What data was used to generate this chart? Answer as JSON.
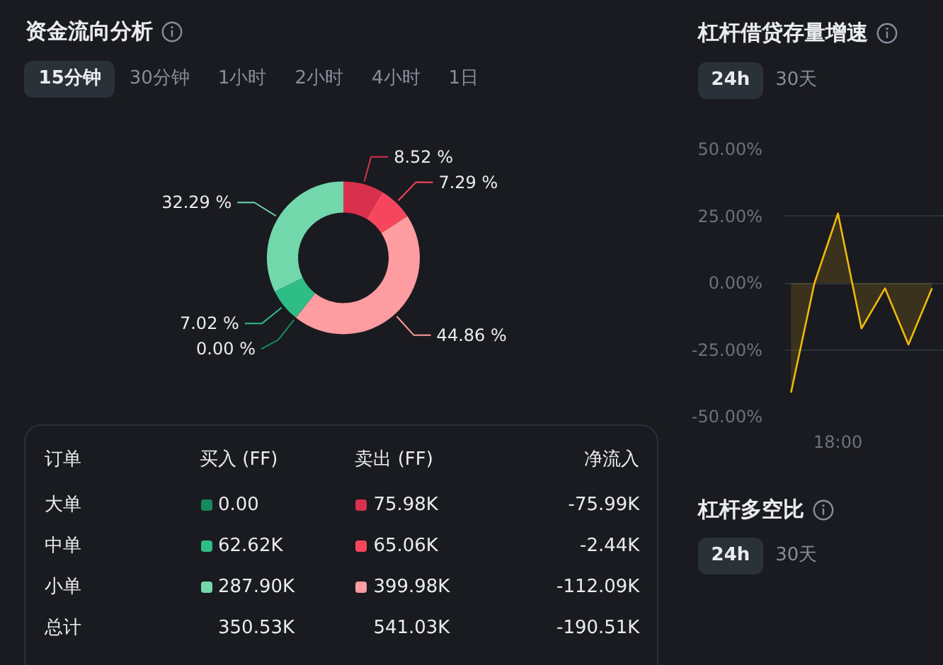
{
  "chart_data": [
    {
      "type": "donut",
      "title": "资金流向分析",
      "annotations": [
        "15分钟",
        "30分钟",
        "1小时",
        "2小时",
        "4小时",
        "1日"
      ],
      "categories": [
        null,
        null,
        null,
        null,
        null,
        null
      ],
      "values": [
        8.52,
        7.29,
        44.86,
        0,
        7.02,
        32.29
      ],
      "colors": [
        "#d9304e",
        "#f6465d",
        "#fd9ca1",
        "#168a5c",
        "#2ebd85",
        "#72d8ac"
      ],
      "value_labels": [
        "8.52 %",
        "7.29 %",
        "44.86 %",
        "0.00 %",
        "7.02 %",
        "32.29 %"
      ]
    },
    {
      "type": "other",
      "annotations": [
        "订单",
        "买入 (FF)",
        "卖出 (FF)",
        "净流入",
        "大单",
        "0.00",
        "75.98K",
        "-75.99K",
        "中单",
        "62.62K",
        "65.06K",
        "-2.44K",
        "小单",
        "287.90K",
        "399.98K",
        "-112.09K",
        "总计",
        "350.53K",
        "541.03K",
        "-190.51K"
      ],
      "colors": [
        null,
        null,
        null,
        null,
        null,
        "#168a5c",
        "#d9304e",
        null,
        null,
        "#2ebd85",
        "#f6465d",
        null,
        null,
        "#72d8ac",
        "#fd9ca1",
        null,
        null,
        null,
        null,
        null
      ]
    },
    {
      "type": "line",
      "title": "杠杆借贷存量增速",
      "annotations": [
        "24h",
        "30天"
      ],
      "categories": [
        null,
        null,
        "18:00",
        null,
        null,
        null,
        null
      ],
      "series": [
        {
          "type": "area",
          "color": "#f0b90b",
          "values": [
            -41,
            0,
            26,
            -17,
            -2,
            -23,
            -2
          ]
        }
      ],
      "ylim": [
        -50,
        50
      ],
      "yticks": [
        {
          "value": -50,
          "label": "-50.00%"
        },
        {
          "value": -25,
          "label": "-25.00%"
        },
        {
          "value": 0,
          "label": "0.00%"
        },
        {
          "value": 25,
          "label": "25.00%"
        },
        {
          "value": 50,
          "label": "50.00%"
        }
      ],
      "grid": "y"
    },
    {
      "type": "other",
      "title": "杠杆多空比",
      "annotations": [
        "24h",
        "30天"
      ]
    }
  ]
}
